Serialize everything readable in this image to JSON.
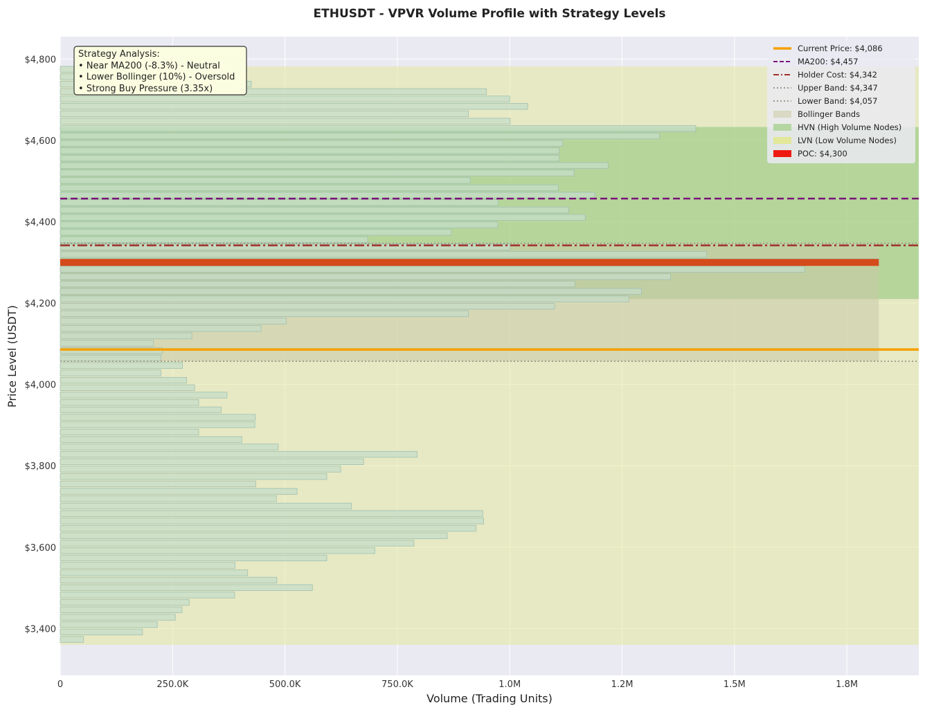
{
  "chart_data": {
    "type": "bar",
    "orientation": "horizontal",
    "title": "ETHUSDT - VPVR Volume Profile with Strategy Levels",
    "xlabel": "Volume (Trading Units)",
    "ylabel": "Price Level (USDT)",
    "xlim": [
      0,
      1910000
    ],
    "ylim": [
      3285,
      4855
    ],
    "x_ticks": [
      {
        "value": 0,
        "label": "0"
      },
      {
        "value": 250000,
        "label": "250.0K"
      },
      {
        "value": 500000,
        "label": "500.0K"
      },
      {
        "value": 750000,
        "label": "750.0K"
      },
      {
        "value": 1000000,
        "label": "1.0M"
      },
      {
        "value": 1250000,
        "label": "1.2M"
      },
      {
        "value": 1500000,
        "label": "1.5M"
      },
      {
        "value": 1750000,
        "label": "1.8M"
      }
    ],
    "y_ticks": [
      {
        "value": 3400,
        "label": "$3,400"
      },
      {
        "value": 3600,
        "label": "$3,600"
      },
      {
        "value": 3800,
        "label": "$3,800"
      },
      {
        "value": 4000,
        "label": "$4,000"
      },
      {
        "value": 4200,
        "label": "$4,200"
      },
      {
        "value": 4400,
        "label": "$4,400"
      },
      {
        "value": 4600,
        "label": "$4,600"
      },
      {
        "value": 4800,
        "label": "$4,800"
      }
    ],
    "grid": true,
    "legend_position": "top-right",
    "profile": {
      "price_start": 3366,
      "bin_size": 18.2,
      "volumes": [
        52000,
        183000,
        216000,
        256000,
        271000,
        287000,
        388000,
        561000,
        482000,
        417000,
        389000,
        593000,
        700000,
        787000,
        861000,
        925000,
        942000,
        940000,
        648000,
        481000,
        527000,
        435000,
        593000,
        624000,
        675000,
        794000,
        485000,
        404000,
        308000,
        433000,
        434000,
        358000,
        308000,
        371000,
        299000,
        281000,
        224000,
        272000,
        224000,
        227000,
        207000,
        293000,
        447000,
        503000,
        908000,
        1100000,
        1265000,
        1293000,
        1145000,
        1358000,
        1656000,
        1821000,
        1438000,
        1000000,
        684000,
        870000,
        973000,
        1168000,
        1131000,
        974000,
        1189000,
        1108000,
        912000,
        1143000,
        1219000,
        1110000,
        1110000,
        1118000,
        1333000,
        1414000,
        1001000,
        908000,
        1040000,
        1000000,
        948000,
        425000,
        150000,
        150000
      ]
    },
    "regions": [
      {
        "name": "LVN (Low Volume Nodes)",
        "y_from": 3360,
        "y_to": 4782,
        "x_to": 1910000,
        "color": "#e3e89e"
      },
      {
        "name": "HVN (High Volume Nodes)",
        "y_from": 4210,
        "y_to": 4633,
        "x_to": 1910000,
        "color": "#8cc47a"
      },
      {
        "name": "Bollinger Bands",
        "y_from": 4057,
        "y_to": 4347,
        "x_to": 1821000,
        "color": "#c9c9a8"
      }
    ],
    "levels": [
      {
        "name": "Current Price",
        "label": "Current Price: $4,086",
        "value": 4086,
        "color": "#f5a000",
        "style": "solid",
        "width": 3.5
      },
      {
        "name": "MA200",
        "label": "MA200: $4,457",
        "value": 4457,
        "color": "#7a1078",
        "style": "dashed",
        "width": 2.5
      },
      {
        "name": "Holder Cost",
        "label": "Holder Cost: $4,342",
        "value": 4342,
        "color": "#a0302a",
        "style": "dashdot",
        "width": 2.5
      },
      {
        "name": "Upper Band",
        "label": "Upper Band: $4,347",
        "value": 4347,
        "color": "#999988",
        "style": "dotted",
        "width": 1.8
      },
      {
        "name": "Lower Band",
        "label": "Lower Band: $4,057",
        "value": 4057,
        "color": "#999988",
        "style": "dotted",
        "width": 1.8
      }
    ],
    "poc": {
      "label": "POC: $4,300",
      "value": 4300,
      "volume": 1821000,
      "color": "#d44a1a"
    },
    "legend": [
      {
        "label": "Current Price: $4,086",
        "kind": "line",
        "color": "#f5a000",
        "style": "solid"
      },
      {
        "label": "MA200: $4,457",
        "kind": "line",
        "color": "#7a1078",
        "style": "dashed"
      },
      {
        "label": "Holder Cost: $4,342",
        "kind": "line",
        "color": "#a0302a",
        "style": "dashdot"
      },
      {
        "label": "Upper Band: $4,347",
        "kind": "line",
        "color": "#999988",
        "style": "dotted"
      },
      {
        "label": "Lower Band: $4,057",
        "kind": "line",
        "color": "#999988",
        "style": "dotted"
      },
      {
        "label": "Bollinger Bands",
        "kind": "patch",
        "color": "#d9d9c4"
      },
      {
        "label": "HVN (High Volume Nodes)",
        "kind": "patch",
        "color": "#b5d6a2"
      },
      {
        "label": "LVN (Low Volume Nodes)",
        "kind": "patch",
        "color": "#e2e79a"
      },
      {
        "label": "POC: $4,300",
        "kind": "patch",
        "color": "#ee1a12"
      }
    ],
    "annotation": {
      "lines": [
        "Strategy Analysis:",
        "• Near MA200 (-8.3%) - Neutral",
        "• Lower Bollinger (10%) - Oversold",
        "• Strong Buy Pressure (3.35x)"
      ]
    },
    "colors": {
      "background": "#eaeaf2",
      "bar_fill": "#c5dcc8",
      "bar_stroke": "#9fbfb0"
    }
  }
}
